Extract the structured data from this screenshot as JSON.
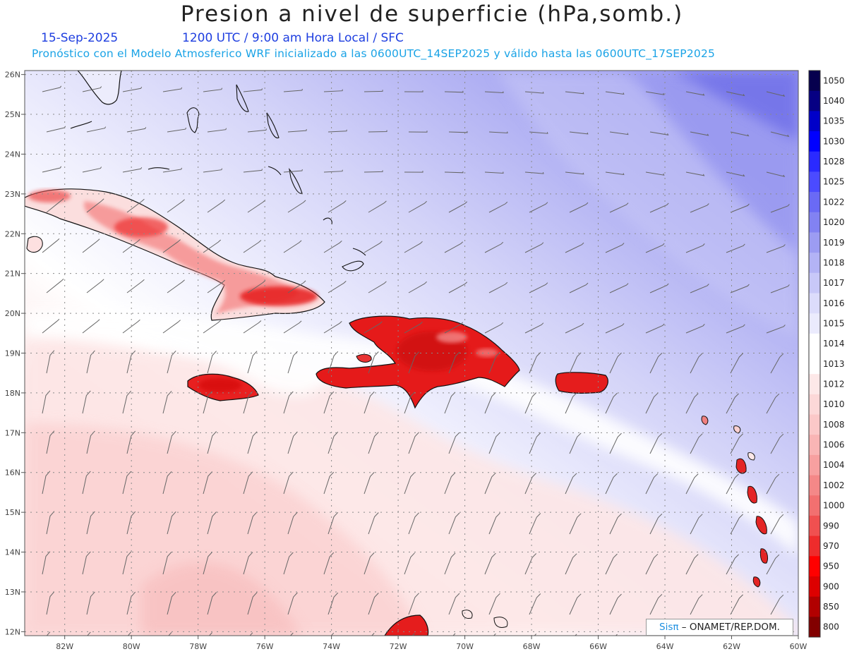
{
  "header": {
    "title": "Presion a nivel de superficie (hPa,somb.)",
    "date": "15-Sep-2025",
    "time_info": "1200 UTC / 9:00 am Hora Local / SFC",
    "model_info": "Pronóstico con el Modelo Atmosferico WRF inicializado a las 0600UTC_14SEP2025 y válido hasta las  0600UTC_17SEP2025"
  },
  "map": {
    "lon_range": [
      -83.2,
      -60
    ],
    "lat_range": [
      11.9,
      26.1
    ],
    "lon_labels": [
      "82W",
      "80W",
      "78W",
      "76W",
      "74W",
      "72W",
      "70W",
      "68W",
      "66W",
      "64W",
      "62W",
      "60W"
    ],
    "lat_labels": [
      "26N",
      "25N",
      "24N",
      "23N",
      "22N",
      "21N",
      "20N",
      "19N",
      "18N",
      "17N",
      "16N",
      "15N",
      "14N",
      "13N",
      "12N"
    ]
  },
  "colorbar": {
    "levels": [
      "1050",
      "1040",
      "1035",
      "1030",
      "1028",
      "1025",
      "1022",
      "1020",
      "1019",
      "1018",
      "1017",
      "1016",
      "1015",
      "1014",
      "1013",
      "1012",
      "1010",
      "1008",
      "1006",
      "1004",
      "1002",
      "1000",
      "990",
      "970",
      "950",
      "900",
      "850",
      "800"
    ],
    "colors": [
      "#06004e",
      "#060083",
      "#0000c8",
      "#0000ff",
      "#2a2aff",
      "#4b4bff",
      "#6a6af5",
      "#8282f2",
      "#9c9cf2",
      "#b3b3f5",
      "#c8c8f8",
      "#dcdcfb",
      "#ebebfd",
      "#ffffff",
      "#ffffff",
      "#fde8e8",
      "#fcd8d8",
      "#fbc8c8",
      "#f9b5b5",
      "#f7a0a0",
      "#f48888",
      "#f27070",
      "#f05050",
      "#ee2c2c",
      "#ff0000",
      "#dd0000",
      "#b10000",
      "#820000"
    ]
  },
  "footer": {
    "credit_brand": "Sisπ",
    "credit_text": " – ONAMET/REP.DOM."
  }
}
